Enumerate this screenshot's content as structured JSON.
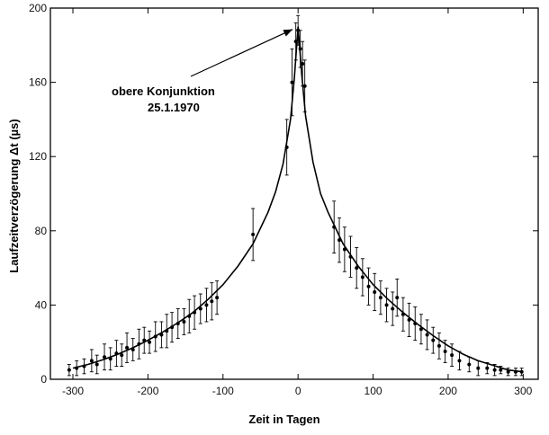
{
  "chart_data": {
    "type": "scatter",
    "title": "",
    "xlabel": "Zeit in Tagen",
    "ylabel": "Laufzeitverzögerung Δt (µs)",
    "xlim": [
      -330,
      320
    ],
    "ylim": [
      0,
      200
    ],
    "x_ticks": [
      -300,
      -200,
      -100,
      0,
      100,
      200,
      300
    ],
    "x_tick_labels": [
      "-300",
      "-200",
      "-100",
      "0",
      "100",
      "200",
      "300"
    ],
    "y_ticks": [
      0,
      40,
      80,
      120,
      160,
      200
    ],
    "y_tick_labels": [
      "0",
      "40",
      "80",
      "120",
      "160",
      "200"
    ],
    "grid": false,
    "annotation": {
      "line1": "obere Konjunktion",
      "line2": "25.1.1970",
      "points_to_x": 0,
      "points_to_y": 190
    },
    "series": [
      {
        "kind": "fit-curve",
        "points": [
          [
            -300,
            6
          ],
          [
            -280,
            8
          ],
          [
            -260,
            10.5
          ],
          [
            -240,
            13.5
          ],
          [
            -220,
            17
          ],
          [
            -200,
            21
          ],
          [
            -180,
            25.5
          ],
          [
            -160,
            30.5
          ],
          [
            -140,
            36
          ],
          [
            -120,
            43
          ],
          [
            -100,
            51
          ],
          [
            -80,
            61
          ],
          [
            -60,
            73
          ],
          [
            -40,
            90
          ],
          [
            -30,
            101
          ],
          [
            -20,
            116
          ],
          [
            -10,
            140
          ],
          [
            -5,
            162
          ],
          [
            0,
            190
          ],
          [
            5,
            164
          ],
          [
            10,
            142
          ],
          [
            20,
            117
          ],
          [
            30,
            100
          ],
          [
            40,
            90
          ],
          [
            60,
            73
          ],
          [
            80,
            61
          ],
          [
            100,
            51
          ],
          [
            120,
            43
          ],
          [
            140,
            36
          ],
          [
            160,
            29.5
          ],
          [
            180,
            23.5
          ],
          [
            200,
            18
          ],
          [
            220,
            13.5
          ],
          [
            240,
            10
          ],
          [
            260,
            7.5
          ],
          [
            280,
            5
          ],
          [
            300,
            4
          ]
        ]
      },
      {
        "kind": "measurements",
        "points": [
          [
            -305,
            5,
            3
          ],
          [
            -295,
            6,
            4
          ],
          [
            -285,
            7,
            4
          ],
          [
            -275,
            10,
            6
          ],
          [
            -268,
            8,
            5
          ],
          [
            -258,
            12,
            7
          ],
          [
            -250,
            11,
            6
          ],
          [
            -242,
            14,
            7
          ],
          [
            -235,
            13,
            6
          ],
          [
            -228,
            17,
            8
          ],
          [
            -220,
            16,
            6
          ],
          [
            -212,
            19,
            8
          ],
          [
            -205,
            21,
            7
          ],
          [
            -198,
            20,
            6
          ],
          [
            -190,
            23,
            8
          ],
          [
            -182,
            24,
            7
          ],
          [
            -175,
            26,
            9
          ],
          [
            -168,
            28,
            8
          ],
          [
            -160,
            30,
            8
          ],
          [
            -152,
            31,
            7
          ],
          [
            -145,
            34,
            9
          ],
          [
            -138,
            36,
            9
          ],
          [
            -130,
            38,
            8
          ],
          [
            -122,
            40,
            9
          ],
          [
            -115,
            42,
            10
          ],
          [
            -108,
            44,
            9
          ],
          [
            -60,
            78,
            14
          ],
          [
            -15,
            125,
            15
          ],
          [
            -8,
            160,
            18
          ],
          [
            -3,
            182,
            10
          ],
          [
            0,
            188,
            8
          ],
          [
            3,
            178,
            10
          ],
          [
            6,
            170,
            12
          ],
          [
            9,
            158,
            14
          ],
          [
            48,
            82,
            14
          ],
          [
            55,
            75,
            12
          ],
          [
            62,
            70,
            12
          ],
          [
            70,
            66,
            11
          ],
          [
            78,
            60,
            11
          ],
          [
            86,
            55,
            10
          ],
          [
            94,
            50,
            10
          ],
          [
            102,
            47,
            10
          ],
          [
            110,
            44,
            9
          ],
          [
            118,
            40,
            9
          ],
          [
            126,
            38,
            9
          ],
          [
            132,
            44,
            10
          ],
          [
            140,
            35,
            9
          ],
          [
            148,
            32,
            9
          ],
          [
            156,
            30,
            9
          ],
          [
            164,
            27,
            8
          ],
          [
            172,
            24,
            8
          ],
          [
            180,
            21,
            7
          ],
          [
            188,
            18,
            7
          ],
          [
            196,
            15,
            6
          ],
          [
            205,
            13,
            6
          ],
          [
            215,
            10,
            5
          ],
          [
            228,
            8,
            4
          ],
          [
            240,
            6,
            4
          ],
          [
            252,
            6,
            3
          ],
          [
            262,
            5,
            3
          ],
          [
            270,
            5,
            2
          ],
          [
            280,
            4,
            2
          ],
          [
            290,
            4,
            2
          ],
          [
            298,
            4,
            2
          ]
        ]
      }
    ]
  }
}
